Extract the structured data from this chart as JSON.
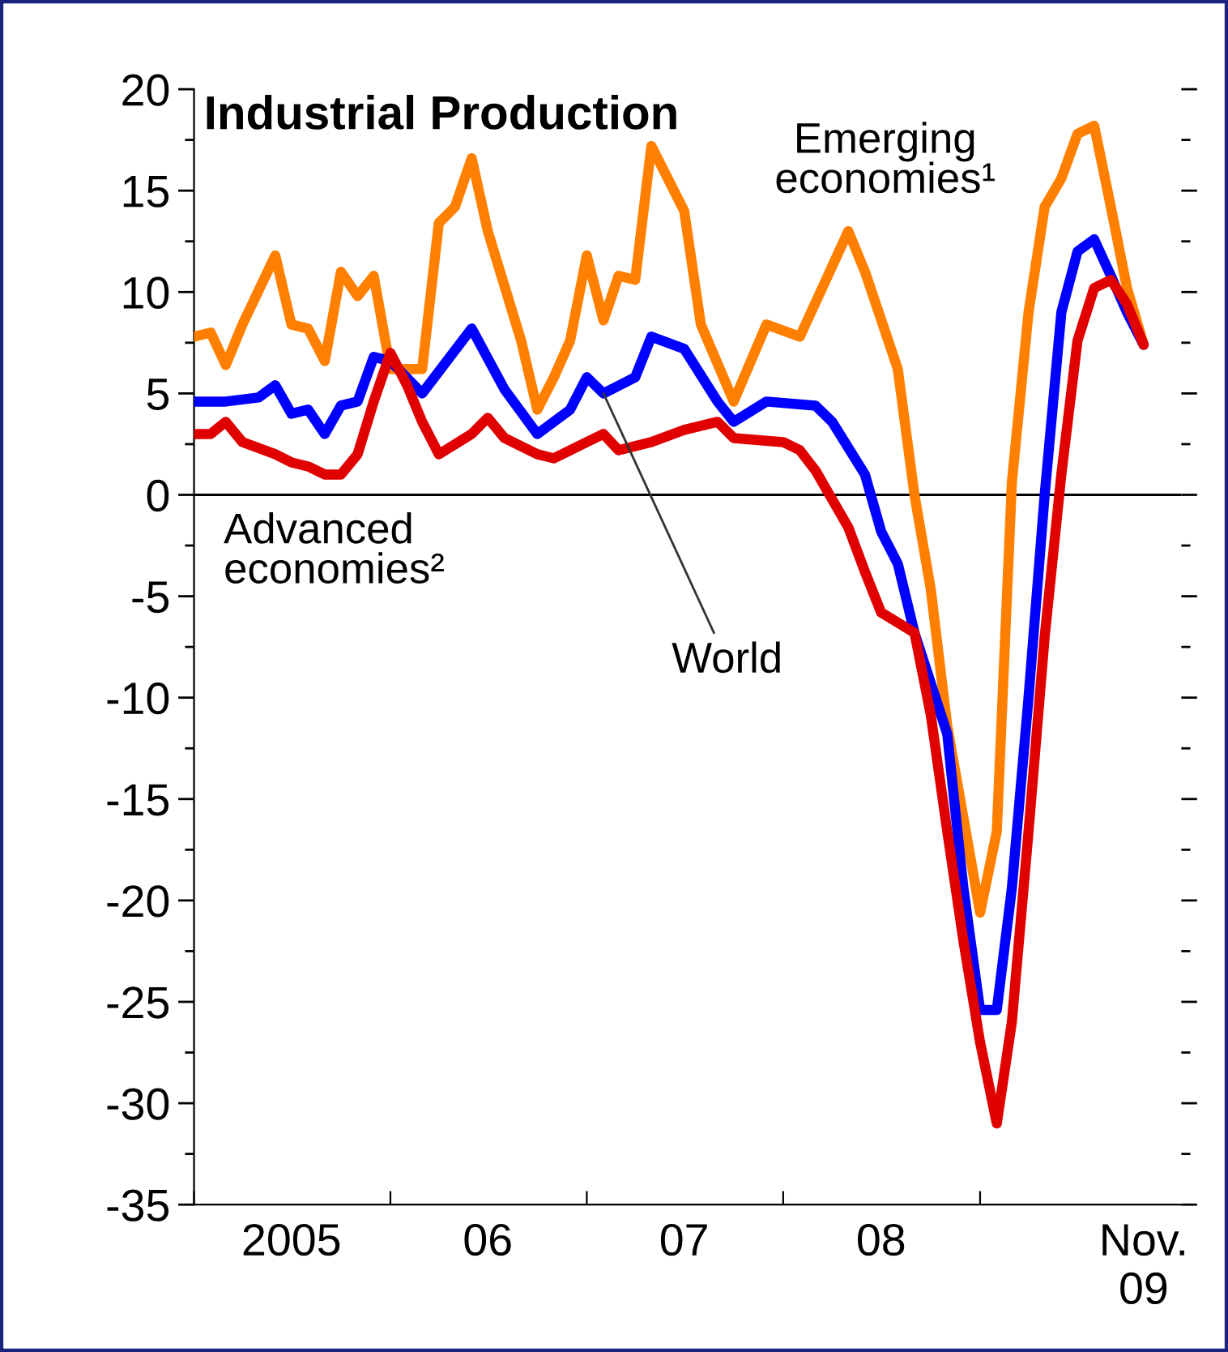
{
  "chart_data": {
    "type": "line",
    "title": "Industrial Production",
    "xlim": [
      "2005-01-01",
      "2010-01-10"
    ],
    "xticks": [
      {
        "value": "2005-01-01",
        "label": null
      },
      {
        "value": "2005-07-01",
        "label": "2005"
      },
      {
        "value": "2006-01-01",
        "label": null
      },
      {
        "value": "2006-07-01",
        "label": "06"
      },
      {
        "value": "2007-01-01",
        "label": null
      },
      {
        "value": "2007-07-01",
        "label": "07"
      },
      {
        "value": "2008-01-01",
        "label": null
      },
      {
        "value": "2008-07-01",
        "label": "08"
      },
      {
        "value": "2009-01-01",
        "label": null
      },
      {
        "value": "2009-11-01",
        "label": "Nov.\n09"
      }
    ],
    "ylim": [
      -35,
      20
    ],
    "yticks": [
      -35,
      {
        "value": -32.5,
        "label": null
      },
      -30,
      {
        "value": -27.5,
        "label": null
      },
      -25,
      {
        "value": -22.5,
        "label": null
      },
      -20,
      {
        "value": -17.5,
        "label": null
      },
      -15,
      {
        "value": -12.5,
        "label": null
      },
      -10,
      {
        "value": -7.5,
        "label": null
      },
      -5,
      {
        "value": -2.5,
        "label": null
      },
      0,
      {
        "value": 2.5,
        "label": null
      },
      5,
      {
        "value": 7.5,
        "label": null
      },
      10,
      {
        "value": 12.5,
        "label": null
      },
      15,
      {
        "value": 17.5,
        "label": null
      },
      20
    ],
    "grid": false,
    "legend": false,
    "line_style": "solid",
    "marker": "none",
    "annotations": [
      {
        "text": "World",
        "x": "2007-02",
        "y": 5.0
      }
    ],
    "ref_lines": [
      {
        "axis": "y",
        "value": 0,
        "color": "#000000"
      }
    ],
    "series": [
      {
        "name": "Emerging economies¹",
        "color": "#ff8000",
        "x": [
          "2005-01",
          "2005-02",
          "2005-03",
          "2005-04",
          "2005-06",
          "2005-07",
          "2005-08",
          "2005-09",
          "2005-10",
          "2005-11",
          "2005-12",
          "2006-01",
          "2006-02",
          "2006-03",
          "2006-04",
          "2006-05",
          "2006-06",
          "2006-07",
          "2006-09",
          "2006-10",
          "2006-11",
          "2006-12",
          "2007-01",
          "2007-02",
          "2007-03",
          "2007-04",
          "2007-05",
          "2007-07",
          "2007-08",
          "2007-10",
          "2007-12",
          "2008-02",
          "2008-05",
          "2008-06",
          "2008-08",
          "2008-09",
          "2008-10",
          "2008-11",
          "2009-01",
          "2009-02",
          "2009-03",
          "2009-04",
          "2009-05",
          "2009-06",
          "2009-07",
          "2009-08",
          "2009-09",
          "2009-10",
          "2009-11"
        ],
        "values": [
          7.8,
          8.0,
          6.4,
          8.4,
          11.8,
          8.4,
          8.2,
          6.6,
          11.0,
          9.8,
          10.8,
          6.2,
          6.2,
          6.2,
          13.4,
          14.2,
          16.6,
          13.0,
          7.6,
          4.2,
          5.8,
          7.6,
          11.8,
          8.6,
          10.8,
          10.6,
          17.2,
          14.0,
          8.4,
          4.6,
          8.4,
          7.8,
          13.0,
          11.0,
          6.2,
          0,
          -4.6,
          -11.4,
          -20.6,
          -16.6,
          0.6,
          9.0,
          14.2,
          15.6,
          17.8,
          18.2,
          14.2,
          10.2,
          7.4
        ]
      },
      {
        "color": "#0000ff",
        "x": [
          "2005-01",
          "2005-03",
          "2005-05",
          "2005-06",
          "2005-07",
          "2005-08",
          "2005-09",
          "2005-10",
          "2005-11",
          "2005-12",
          "2006-01",
          "2006-03",
          "2006-06",
          "2006-08",
          "2006-10",
          "2006-12",
          "2007-01",
          "2007-02",
          "2007-04",
          "2007-05",
          "2007-07",
          "2007-09",
          "2007-10",
          "2007-12",
          "2008-03",
          "2008-04",
          "2008-06",
          "2008-07",
          "2008-08",
          "2008-09",
          "2008-11",
          "2008-12",
          "2009-01",
          "2009-02",
          "2009-03",
          "2009-04",
          "2009-05",
          "2009-06",
          "2009-07",
          "2009-08",
          "2009-09",
          "2009-10",
          "2009-11"
        ],
        "values": [
          4.6,
          4.6,
          4.8,
          5.4,
          4.0,
          4.2,
          3.0,
          4.4,
          4.6,
          6.8,
          6.6,
          5.0,
          8.2,
          5.2,
          3.0,
          4.2,
          5.8,
          5.0,
          5.8,
          7.8,
          7.2,
          4.6,
          3.6,
          4.6,
          4.4,
          3.6,
          1.0,
          -1.8,
          -3.4,
          -6.8,
          -11.8,
          -19.4,
          -25.4,
          -25.4,
          -19.4,
          -10,
          0,
          9,
          12,
          12.6,
          10.8,
          9,
          7.4
        ]
      },
      {
        "name": "Advanced economies²",
        "color": "#e00000",
        "x": [
          "2005-01",
          "2005-02",
          "2005-03",
          "2005-04",
          "2005-06",
          "2005-07",
          "2005-08",
          "2005-09",
          "2005-10",
          "2005-11",
          "2005-12",
          "2006-01",
          "2006-02",
          "2006-03",
          "2006-04",
          "2006-06",
          "2006-07",
          "2006-08",
          "2006-10",
          "2006-11",
          "2007-01",
          "2007-02",
          "2007-03",
          "2007-05",
          "2007-07",
          "2007-09",
          "2007-10",
          "2008-01",
          "2008-02",
          "2008-03",
          "2008-05",
          "2008-06",
          "2008-07",
          "2008-09",
          "2008-10",
          "2008-11",
          "2008-12",
          "2009-01",
          "2009-02",
          "2009-03",
          "2009-04",
          "2009-05",
          "2009-06",
          "2009-07",
          "2009-08",
          "2009-09",
          "2009-10",
          "2009-11"
        ],
        "values": [
          3.0,
          3.0,
          3.6,
          2.6,
          2.0,
          1.6,
          1.4,
          1.0,
          1.0,
          2.0,
          4.6,
          7.0,
          5.4,
          3.6,
          2.0,
          3.0,
          3.8,
          2.8,
          2.0,
          1.8,
          2.6,
          3.0,
          2.2,
          2.6,
          3.2,
          3.6,
          2.8,
          2.6,
          2.2,
          1.2,
          -1.6,
          -3.8,
          -5.8,
          -6.8,
          -10.8,
          -16.6,
          -22,
          -27,
          -31,
          -26,
          -16.6,
          -7,
          1,
          7.6,
          10.2,
          10.6,
          9.4,
          7.4
        ]
      }
    ]
  }
}
